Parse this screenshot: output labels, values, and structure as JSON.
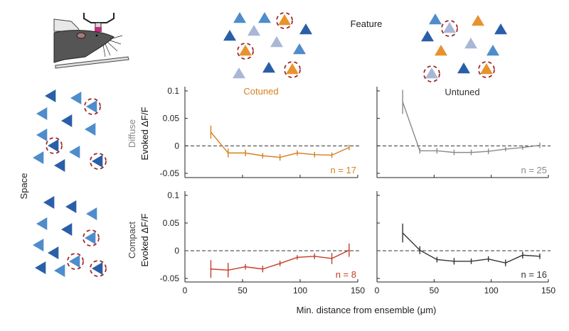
{
  "labels": {
    "feature": "Feature",
    "space": "Space",
    "diffuse": "Diffuse",
    "compact": "Compact",
    "ylabel": "Evoked ΔF/F",
    "xlabel": "Min. distance from ensemble (μm)",
    "cotuned": "Cotuned",
    "untuned": "Untuned"
  },
  "colors": {
    "triangle_dark": "#2a5fa8",
    "triangle_mid": "#4f8ccb",
    "triangle_light": "#a8b7d6",
    "triangle_orange": "#e8922e",
    "ensemble_circle": "#a02828"
  },
  "chart_data": [
    {
      "type": "line",
      "panel": "diffuse-cotuned",
      "title": "Cotuned",
      "row_label": "Diffuse",
      "ylabel": "Evoked ΔF/F",
      "xlim": [
        0,
        150
      ],
      "ylim": [
        -0.06,
        0.11
      ],
      "yticks": [
        "0.1",
        "0.05",
        "0",
        "-0.05"
      ],
      "xticks": [],
      "color": "#d4801f",
      "annotation": "n = 17",
      "reference_line": 0,
      "x": [
        22.5,
        37.5,
        52.5,
        67.5,
        82.5,
        97.5,
        112.5,
        127.5,
        142.5
      ],
      "y": [
        0.025,
        -0.013,
        -0.013,
        -0.018,
        -0.021,
        -0.013,
        -0.016,
        -0.017,
        -0.003
      ],
      "err": [
        0.012,
        0.008,
        0.006,
        0.005,
        0.006,
        0.005,
        0.005,
        0.005,
        0.005
      ]
    },
    {
      "type": "line",
      "panel": "diffuse-untuned",
      "title": "Untuned",
      "xlim": [
        0,
        150
      ],
      "ylim": [
        -0.06,
        0.11
      ],
      "xticks": [],
      "color": "#8a8a8a",
      "annotation": "n = 25",
      "reference_line": 0,
      "x": [
        22.5,
        37.5,
        52.5,
        67.5,
        82.5,
        97.5,
        112.5,
        127.5,
        142.5
      ],
      "y": [
        0.08,
        -0.009,
        -0.009,
        -0.012,
        -0.012,
        -0.01,
        -0.006,
        -0.003,
        0.001
      ],
      "err": [
        0.022,
        0.005,
        0.005,
        0.005,
        0.005,
        0.005,
        0.004,
        0.004,
        0.005
      ]
    },
    {
      "type": "line",
      "panel": "compact-cotuned",
      "row_label": "Compact",
      "ylabel": "Evoked ΔF/F",
      "xlim": [
        0,
        150
      ],
      "ylim": [
        -0.06,
        0.11
      ],
      "yticks": [
        "0.1",
        "0.05",
        "0",
        "-0.05"
      ],
      "xticks": [
        "0",
        "50",
        "100",
        "150"
      ],
      "color": "#c43d28",
      "annotation": "n = 8",
      "reference_line": 0,
      "x": [
        22.5,
        37.5,
        52.5,
        67.5,
        82.5,
        97.5,
        112.5,
        127.5,
        142.5
      ],
      "y": [
        -0.033,
        -0.035,
        -0.029,
        -0.033,
        -0.023,
        -0.012,
        -0.01,
        -0.014,
        0.001
      ],
      "err": [
        0.016,
        0.013,
        0.005,
        0.006,
        0.005,
        0.004,
        0.005,
        0.01,
        0.012
      ]
    },
    {
      "type": "line",
      "panel": "compact-untuned",
      "xlim": [
        0,
        150
      ],
      "ylim": [
        -0.06,
        0.11
      ],
      "xticks": [
        "0",
        "50",
        "100",
        "150"
      ],
      "color": "#333333",
      "annotation": "n = 16",
      "reference_line": 0,
      "x": [
        22.5,
        37.5,
        52.5,
        67.5,
        82.5,
        97.5,
        112.5,
        127.5,
        142.5
      ],
      "y": [
        0.032,
        0.001,
        -0.016,
        -0.019,
        -0.019,
        -0.015,
        -0.022,
        -0.008,
        -0.01
      ],
      "err": [
        0.017,
        0.007,
        0.005,
        0.006,
        0.005,
        0.005,
        0.006,
        0.006,
        0.005
      ]
    }
  ]
}
